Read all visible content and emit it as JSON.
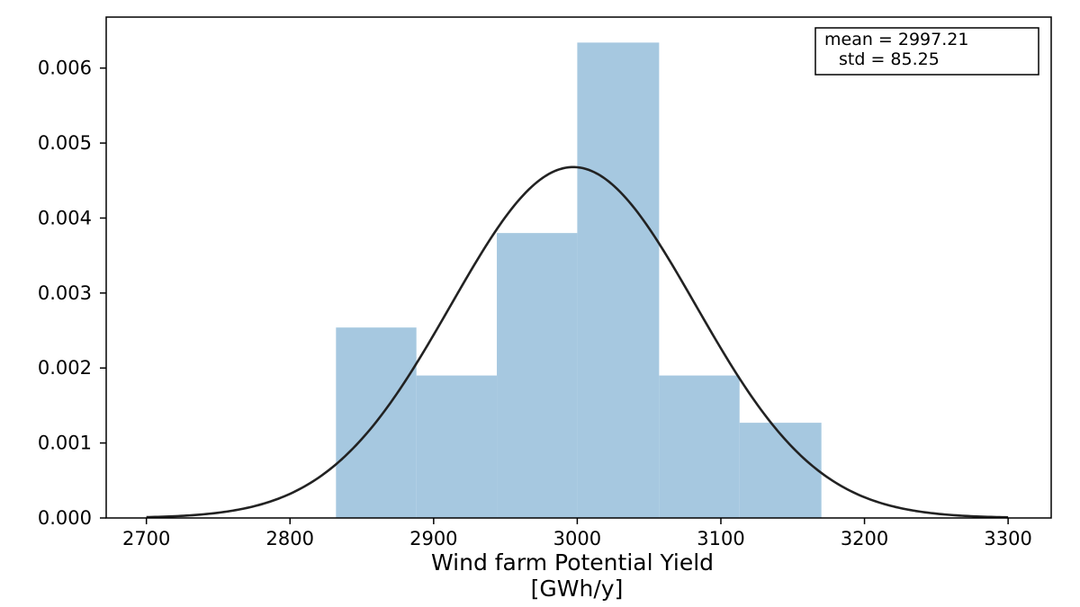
{
  "chart_data": {
    "type": "bar",
    "subtype": "histogram-with-normal-fit",
    "bins": [
      {
        "start": 2832,
        "end": 2888,
        "density": 0.00254
      },
      {
        "start": 2888,
        "end": 2944,
        "density": 0.0019
      },
      {
        "start": 2944,
        "end": 3000,
        "density": 0.0038
      },
      {
        "start": 3000,
        "end": 3057,
        "density": 0.00634
      },
      {
        "start": 3057,
        "end": 3113,
        "density": 0.0019
      },
      {
        "start": 3113,
        "end": 3170,
        "density": 0.00127
      }
    ],
    "fit": {
      "mean": 2997.21,
      "std": 85.25,
      "x_range": [
        2700,
        3300
      ]
    },
    "xlabel_line1": "Wind farm Potential Yield",
    "xlabel_line2": "[GWh/y]",
    "ylabel": "",
    "xlim": [
      2672,
      3330
    ],
    "ylim": [
      0,
      0.00668
    ],
    "xticks": [
      2700,
      2800,
      2900,
      3000,
      3100,
      3200,
      3300
    ],
    "xtick_labels": [
      "2700",
      "2800",
      "2900",
      "3000",
      "3100",
      "3200",
      "3300"
    ],
    "yticks": [
      0,
      0.001,
      0.002,
      0.003,
      0.004,
      0.005,
      0.006
    ],
    "ytick_labels": [
      "0.000",
      "0.001",
      "0.002",
      "0.003",
      "0.004",
      "0.005",
      "0.006"
    ],
    "legend": {
      "line1": "mean = 2997.21",
      "line2": "std = 85.25",
      "position": "top-right"
    },
    "grid": false,
    "colors": {
      "bar": "#a6c8e0",
      "curve": "#222222",
      "axis": "#000000"
    }
  }
}
